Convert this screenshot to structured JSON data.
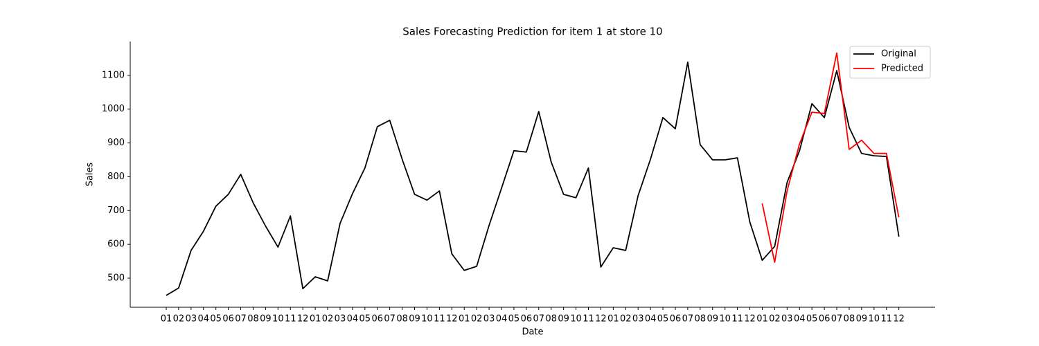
{
  "chart_data": {
    "type": "line",
    "title": "Sales Forecasting Prediction for item 1 at store 10",
    "xlabel": "Date",
    "ylabel": "Sales",
    "categories": [
      "01",
      "02",
      "03",
      "04",
      "05",
      "06",
      "07",
      "08",
      "09",
      "10",
      "11",
      "12",
      "01",
      "02",
      "03",
      "04",
      "05",
      "06",
      "07",
      "08",
      "09",
      "10",
      "11",
      "12",
      "01",
      "02",
      "03",
      "04",
      "05",
      "06",
      "07",
      "08",
      "09",
      "10",
      "11",
      "12",
      "01",
      "02",
      "03",
      "04",
      "05",
      "06",
      "07",
      "08",
      "09",
      "10",
      "11",
      "12",
      "01",
      "02",
      "03",
      "04",
      "05",
      "06",
      "07",
      "08",
      "09",
      "10",
      "11",
      "12"
    ],
    "series": [
      {
        "name": "Original",
        "color": "#000000",
        "values": [
          449,
          471,
          582,
          639,
          713,
          748,
          807,
          723,
          654,
          592,
          684,
          469,
          504,
          492,
          662,
          750,
          826,
          948,
          967,
          852,
          748,
          731,
          758,
          572,
          523,
          535,
          656,
          766,
          877,
          873,
          993,
          844,
          748,
          738,
          826,
          533,
          590,
          582,
          744,
          852,
          975,
          942,
          1139,
          895,
          850,
          850,
          856,
          666,
          553,
          594,
          783,
          877,
          1016,
          975,
          1114,
          946,
          869,
          862,
          860,
          623
        ]
      },
      {
        "name": "Predicted",
        "color": "#ff0000",
        "values": [
          null,
          null,
          null,
          null,
          null,
          null,
          null,
          null,
          null,
          null,
          null,
          null,
          null,
          null,
          null,
          null,
          null,
          null,
          null,
          null,
          null,
          null,
          null,
          null,
          null,
          null,
          null,
          null,
          null,
          null,
          null,
          null,
          null,
          null,
          null,
          null,
          null,
          null,
          null,
          null,
          null,
          null,
          null,
          null,
          null,
          null,
          null,
          null,
          721,
          547,
          758,
          897,
          991,
          987,
          1166,
          881,
          908,
          869,
          869,
          680
        ]
      }
    ],
    "ylim": [
      414,
      1200
    ],
    "yticks": [
      500,
      600,
      700,
      800,
      900,
      1000,
      1100
    ],
    "legend": "upper right"
  }
}
